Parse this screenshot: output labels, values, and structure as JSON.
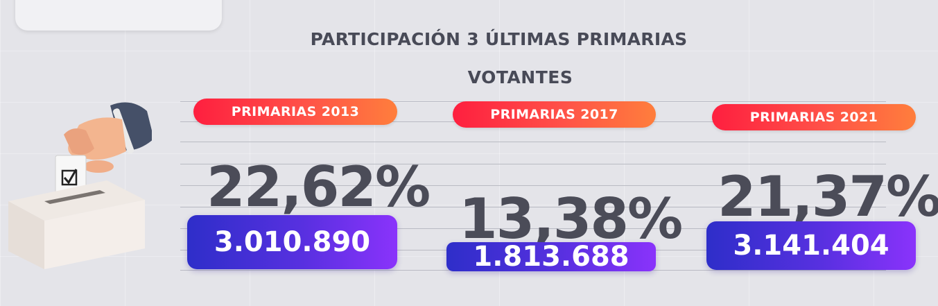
{
  "title": "PARTICIPACIÓN 3 ÚLTIMAS PRIMARIAS",
  "subtitle": "VOTANTES",
  "colors": {
    "pill_gradient": [
      "#fe1f3f",
      "#ff7e3c"
    ],
    "value_gradient": [
      "#2e2ec9",
      "#8a33fb"
    ],
    "text_dark": "#484a57"
  },
  "icon": "ballot-box-hand-icon",
  "chart_data": {
    "type": "table",
    "title": "PARTICIPACIÓN 3 ÚLTIMAS PRIMARIAS",
    "subtitle": "VOTANTES",
    "categories": [
      "PRIMARIAS 2013",
      "PRIMARIAS 2017",
      "PRIMARIAS 2021"
    ],
    "series": [
      {
        "values": [
          "22,62%",
          "13,38%",
          "21,37%"
        ]
      },
      {
        "values": [
          "3.010.890",
          "1.813.688",
          "3.141.404"
        ]
      }
    ]
  }
}
